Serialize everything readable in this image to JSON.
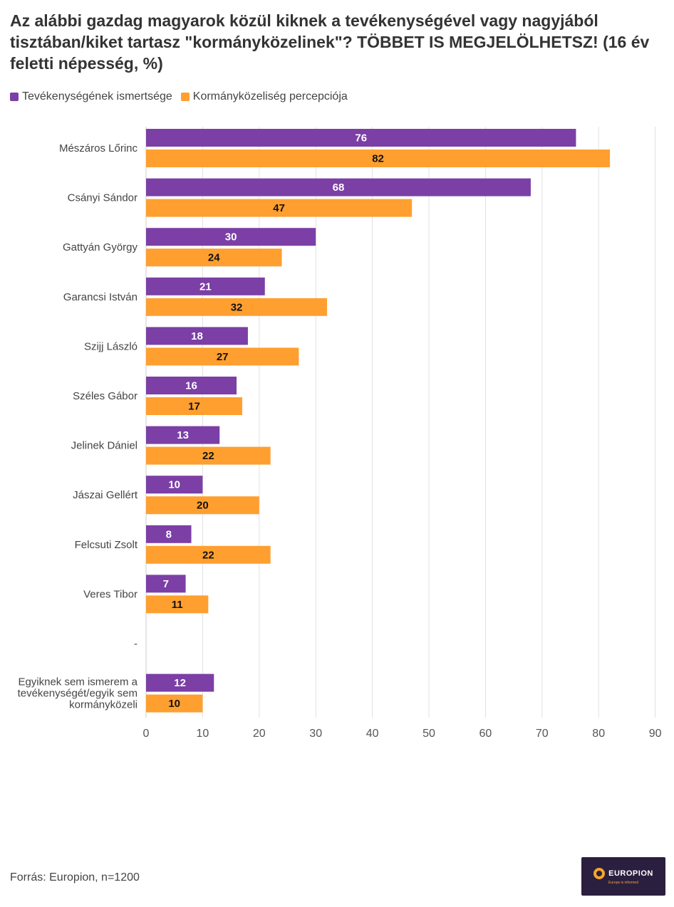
{
  "title": "Az alábbi gazdag magyarok közül kiknek a tevékenységével vagy nagyjából tisztában/kiket tartasz \"kormányközelinek\"? TÖBBET IS MEGJELÖLHETSZ! (16 év feletti népesség, %)",
  "colors": {
    "purple": "#7b3fa6",
    "orange": "#ff9f30",
    "grid": "#e0e0e0"
  },
  "source": "Forrás: Europion, n=1200",
  "logo": {
    "name": "EUROPION",
    "tagline": "Europe is informed"
  },
  "chart_data": {
    "type": "bar",
    "orientation": "horizontal",
    "categories": [
      "Mészáros Lőrinc",
      "Csányi Sándor",
      "Gattyán György",
      "Garancsi István",
      "Szijj László",
      "Széles Gábor",
      "Jelinek Dániel",
      "Jászai Gellért",
      "Felcsuti Zsolt",
      "Veres Tibor",
      "-",
      "Egyiknek sem ismerem a tevékenységét/egyik sem kormányközeli"
    ],
    "series": [
      {
        "name": "Tevékenységének ismertsége",
        "color": "#7b3fa6",
        "values": [
          76,
          68,
          30,
          21,
          18,
          16,
          13,
          10,
          8,
          7,
          null,
          12
        ]
      },
      {
        "name": "Kormányközeliség percepciója",
        "color": "#ff9f30",
        "values": [
          82,
          47,
          24,
          32,
          27,
          17,
          22,
          20,
          22,
          11,
          null,
          10
        ]
      }
    ],
    "xlim": [
      0,
      90
    ],
    "xticks": [
      0,
      10,
      20,
      30,
      40,
      50,
      60,
      70,
      80,
      90
    ],
    "grid": true,
    "legend_position": "top-left"
  }
}
